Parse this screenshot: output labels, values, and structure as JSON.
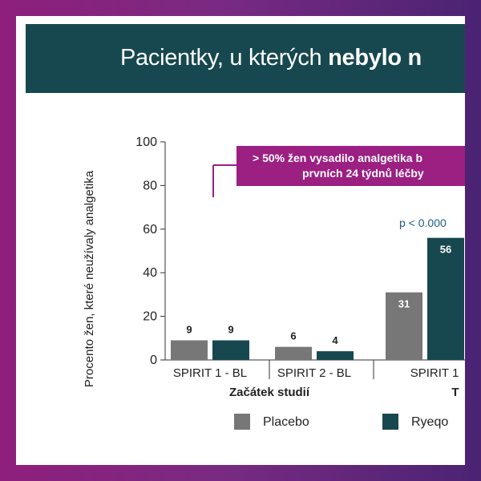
{
  "slide": {
    "title_regular": "Pacientky, u kterých ",
    "title_bold": "nebylo n",
    "callout_line1": "> 50% žen vysadilo analgetika b",
    "callout_line2": "prvních 24 týdnů léčby",
    "p_value": "p < 0.000"
  },
  "colors": {
    "title_bar": "#17484f",
    "placebo": "#777777",
    "ryeqo": "#17484f",
    "callout": "#9b2082",
    "p_value": "#1f5f86",
    "frame": "#8e1f7c"
  },
  "chart_data": {
    "type": "bar",
    "ylabel": "Procento žen, které neužívaly analgetika",
    "ylim": [
      0,
      100
    ],
    "yticks": [
      0,
      20,
      40,
      60,
      80,
      100
    ],
    "categories": [
      "SPIRIT 1 - BL",
      "SPIRIT 2 - BL",
      "SPIRIT 1"
    ],
    "groups": [
      {
        "label": "Začátek studií",
        "categories": [
          "SPIRIT 1 - BL",
          "SPIRIT 2 - BL"
        ]
      },
      {
        "label": "T",
        "categories": [
          "SPIRIT 1"
        ]
      }
    ],
    "series": [
      {
        "name": "Placebo",
        "values": [
          9,
          6,
          31
        ],
        "labels": [
          "9",
          "6",
          "31"
        ]
      },
      {
        "name": "Ryeqo",
        "values": [
          9,
          4,
          56
        ],
        "labels": [
          "9",
          "4",
          "56"
        ]
      }
    ],
    "legend": {
      "items": [
        "Placebo",
        "Ryeqo"
      ],
      "position": "bottom"
    },
    "legend_labels": [
      "Placebo",
      "Ryeqo"
    ],
    "grid": false
  }
}
